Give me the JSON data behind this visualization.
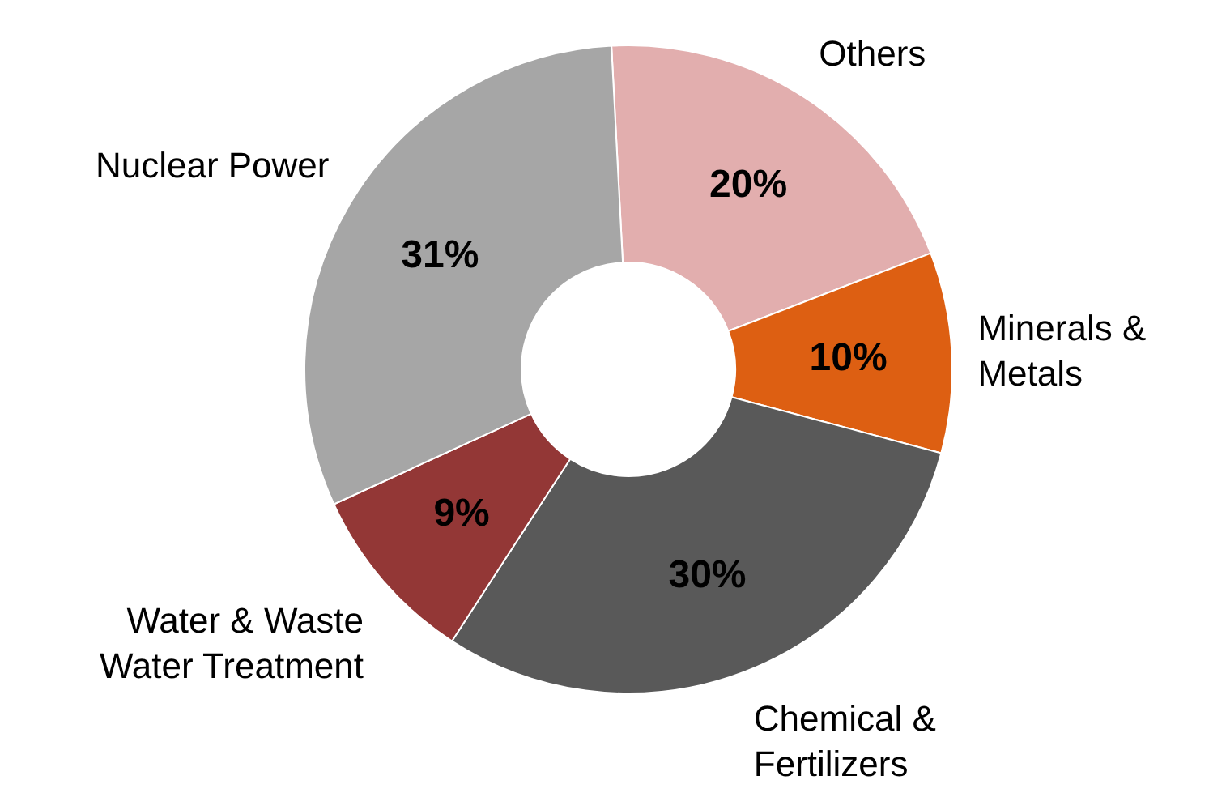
{
  "chart_data": {
    "type": "donut",
    "categories": [
      "Others",
      "Minerals & Metals",
      "Chemical & Fertilizers",
      "Water & Waste Water Treatment",
      "Nuclear Power"
    ],
    "values": [
      20,
      10,
      30,
      9,
      31
    ],
    "value_labels": [
      "20%",
      "10%",
      "30%",
      "9%",
      "31%"
    ],
    "colors": [
      "#e2aeae",
      "#dd5f12",
      "#595959",
      "#933736",
      "#a6a6a6"
    ],
    "legend": false
  }
}
